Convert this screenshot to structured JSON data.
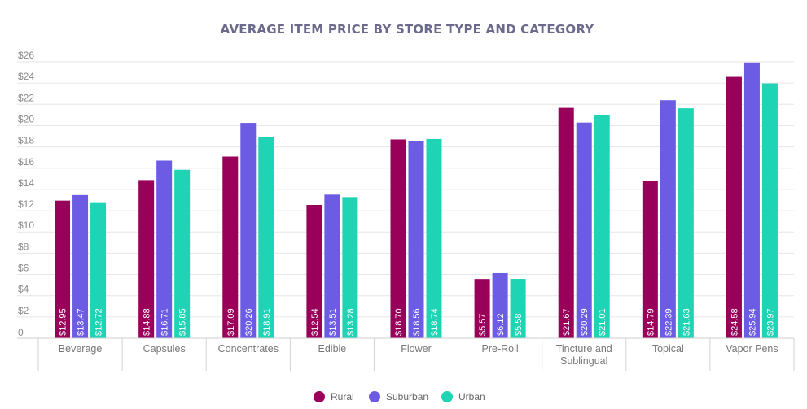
{
  "chart_data": {
    "type": "bar",
    "title": "AVERAGE ITEM PRICE BY STORE TYPE AND CATEGORY",
    "xlabel": "",
    "ylabel": "",
    "ylim": [
      0,
      26
    ],
    "y_ticks": [
      0,
      2,
      4,
      6,
      8,
      10,
      12,
      14,
      16,
      18,
      20,
      22,
      24,
      26
    ],
    "y_tick_labels": [
      "0",
      "$2",
      "$4",
      "$6",
      "$8",
      "$10",
      "$12",
      "$14",
      "$16",
      "$18",
      "$20",
      "$22",
      "$24",
      "$26"
    ],
    "grid": true,
    "legend_position": "bottom-center",
    "categories": [
      "Beverage",
      "Capsules",
      "Concentrates",
      "Edible",
      "Flower",
      "Pre-Roll",
      "Tincture and Sublingual",
      "Topical",
      "Vapor Pens"
    ],
    "category_lines": [
      [
        "Beverage"
      ],
      [
        "Capsules"
      ],
      [
        "Concentrates"
      ],
      [
        "Edible"
      ],
      [
        "Flower"
      ],
      [
        "Pre-Roll"
      ],
      [
        "Tincture and",
        "Sublingual"
      ],
      [
        "Topical"
      ],
      [
        "Vapor Pens"
      ]
    ],
    "series": [
      {
        "name": "Rural",
        "color": "#980059",
        "values": [
          12.95,
          14.88,
          17.09,
          12.54,
          18.7,
          5.57,
          21.67,
          14.79,
          24.58
        ],
        "labels": [
          "$12.95",
          "$14.88",
          "$17.09",
          "$12.54",
          "$18.70",
          "$5.57",
          "$21.67",
          "$14.79",
          "$24.58"
        ]
      },
      {
        "name": "Suburban",
        "color": "#6c5ce4",
        "values": [
          13.47,
          16.71,
          20.26,
          13.51,
          18.56,
          6.12,
          20.29,
          22.39,
          25.94
        ],
        "labels": [
          "$13.47",
          "$16.71",
          "$20.26",
          "$13.51",
          "$18.56",
          "$6.12",
          "$20.29",
          "$22.39",
          "$25.94"
        ]
      },
      {
        "name": "Urban",
        "color": "#1ed4b4",
        "values": [
          12.72,
          15.85,
          18.91,
          13.28,
          18.74,
          5.58,
          21.01,
          21.63,
          23.97
        ],
        "labels": [
          "$12.72",
          "$15.85",
          "$18.91",
          "$13.28",
          "$18.74",
          "$5.58",
          "$21.01",
          "$21.63",
          "$23.97"
        ]
      }
    ]
  }
}
